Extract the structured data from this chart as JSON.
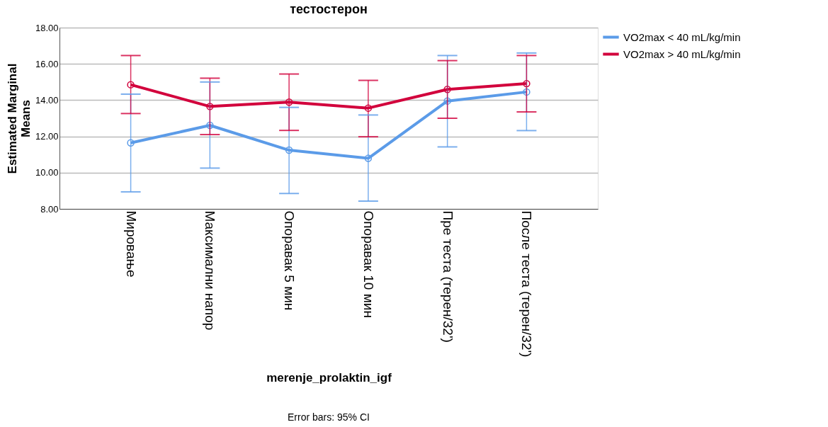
{
  "chart_data": {
    "type": "line",
    "title": "тестостерон",
    "xlabel": "merenje_prolaktin_igf",
    "ylabel": "Estimated Marginal\nMeans",
    "annotations": [
      "Error bars: 95% CI"
    ],
    "categories": [
      "Мировање",
      "Максимални напор",
      "Опоравак 5 мин",
      "Опоравак 10 мин",
      "Пре теста (терен/32')",
      "После теста (терен/32')"
    ],
    "series": [
      {
        "name": "VO2max < 40 mL/kg/min",
        "color": "#5b9be8",
        "values": [
          11.64,
          12.61,
          11.24,
          10.79,
          13.95,
          14.45
        ],
        "errors": [
          [
            8.94,
            14.33
          ],
          [
            10.25,
            15.0
          ],
          [
            8.85,
            13.6
          ],
          [
            8.43,
            13.18
          ],
          [
            11.42,
            16.46
          ],
          [
            12.32,
            16.6
          ]
        ]
      },
      {
        "name": "VO2max > 40 mL/kg/min",
        "color": "#d2003c",
        "values": [
          14.85,
          13.65,
          13.89,
          13.56,
          14.59,
          14.91
        ],
        "errors": [
          [
            13.26,
            16.46
          ],
          [
            12.1,
            15.21
          ],
          [
            12.33,
            15.44
          ],
          [
            11.98,
            15.09
          ],
          [
            13.0,
            16.18
          ],
          [
            13.35,
            16.46
          ]
        ]
      }
    ],
    "ylim": [
      8,
      18
    ],
    "yticks": [
      {
        "value": 8,
        "label": "8.00"
      },
      {
        "value": 10,
        "label": "10.00"
      },
      {
        "value": 12,
        "label": "12.00"
      },
      {
        "value": 14,
        "label": "14.00"
      },
      {
        "value": 16,
        "label": "16.00"
      },
      {
        "value": 18,
        "label": "18.00"
      }
    ],
    "grid": "y",
    "legend": "top right",
    "marker": "circle",
    "line_style": "solid"
  }
}
